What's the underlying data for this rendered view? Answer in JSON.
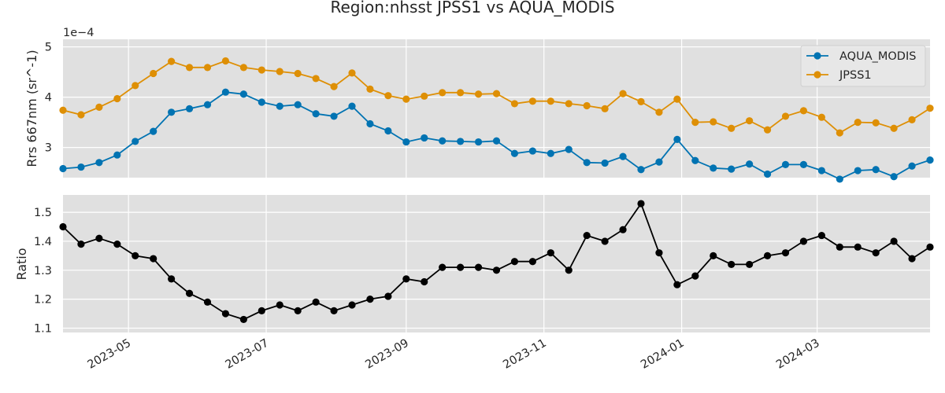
{
  "chart_data": {
    "type": "line",
    "title": "Region:nhsst JPSS1 vs AQUA_MODIS",
    "x": [
      "2023-04-02",
      "2023-04-10",
      "2023-04-18",
      "2023-04-26",
      "2023-05-04",
      "2023-05-12",
      "2023-05-20",
      "2023-05-28",
      "2023-06-05",
      "2023-06-13",
      "2023-06-21",
      "2023-06-29",
      "2023-07-07",
      "2023-07-15",
      "2023-07-23",
      "2023-07-31",
      "2023-08-08",
      "2023-08-16",
      "2023-08-24",
      "2023-09-01",
      "2023-09-09",
      "2023-09-17",
      "2023-09-25",
      "2023-10-03",
      "2023-10-11",
      "2023-10-19",
      "2023-10-27",
      "2023-11-04",
      "2023-11-12",
      "2023-11-20",
      "2023-11-28",
      "2023-12-06",
      "2023-12-14",
      "2023-12-22",
      "2023-12-30",
      "2024-01-07",
      "2024-01-15",
      "2024-01-23",
      "2024-01-31",
      "2024-02-08",
      "2024-02-16",
      "2024-02-24",
      "2024-03-03",
      "2024-03-11",
      "2024-03-19",
      "2024-03-27",
      "2024-04-04",
      "2024-04-12",
      "2024-04-20"
    ],
    "panels": [
      {
        "ylabel": "Rrs 667nm (sr^-1)",
        "offset_text": "1e−4",
        "ylim": [
          2.4,
          5.15
        ],
        "yticks": [
          3,
          4,
          5
        ],
        "legend": "top-right",
        "series": [
          {
            "name": "AQUA_MODIS",
            "color": "#0173b2",
            "values": [
              2.58,
              2.61,
              2.7,
              2.85,
              3.12,
              3.32,
              3.7,
              3.77,
              3.85,
              4.1,
              4.06,
              3.9,
              3.82,
              3.85,
              3.67,
              3.62,
              3.82,
              3.47,
              3.33,
              3.11,
              3.19,
              3.13,
              3.12,
              3.11,
              3.13,
              2.88,
              2.93,
              2.88,
              2.96,
              2.7,
              2.69,
              2.82,
              2.56,
              2.71,
              3.16,
              2.74,
              2.59,
              2.57,
              2.67,
              2.47,
              2.66,
              2.66,
              2.54,
              2.37,
              2.54,
              2.56,
              2.42,
              2.63,
              2.75
            ]
          },
          {
            "name": "JPSS1",
            "color": "#de8f05",
            "values": [
              3.74,
              3.65,
              3.8,
              3.97,
              4.23,
              4.47,
              4.71,
              4.59,
              4.59,
              4.72,
              4.59,
              4.54,
              4.51,
              4.47,
              4.37,
              4.21,
              4.48,
              4.16,
              4.03,
              3.96,
              4.02,
              4.09,
              4.09,
              4.06,
              4.07,
              3.87,
              3.92,
              3.92,
              3.87,
              3.83,
              3.77,
              4.07,
              3.91,
              3.7,
              3.96,
              3.5,
              3.51,
              3.38,
              3.53,
              3.35,
              3.62,
              3.73,
              3.6,
              3.29,
              3.5,
              3.49,
              3.38,
              3.55,
              3.78
            ]
          }
        ]
      },
      {
        "ylabel": "Ratio",
        "ylim": [
          1.085,
          1.56
        ],
        "yticks": [
          1.1,
          1.2,
          1.3,
          1.4,
          1.5
        ],
        "series": [
          {
            "color": "#000000",
            "values": [
              1.45,
              1.39,
              1.41,
              1.39,
              1.35,
              1.34,
              1.27,
              1.22,
              1.19,
              1.15,
              1.13,
              1.16,
              1.18,
              1.16,
              1.19,
              1.16,
              1.18,
              1.2,
              1.21,
              1.27,
              1.26,
              1.31,
              1.31,
              1.31,
              1.3,
              1.33,
              1.33,
              1.36,
              1.3,
              1.42,
              1.4,
              1.44,
              1.53,
              1.36,
              1.25,
              1.28,
              1.35,
              1.32,
              1.32,
              1.35,
              1.36,
              1.4,
              1.42,
              1.38,
              1.38,
              1.36,
              1.4,
              1.34,
              1.38
            ]
          }
        ]
      }
    ],
    "xlim": [
      "2023-04-02",
      "2024-04-20"
    ],
    "xticks": [
      "2023-05-01",
      "2023-07-01",
      "2023-09-01",
      "2023-11-01",
      "2024-01-01",
      "2024-03-01"
    ],
    "xtick_labels": [
      "2023-05",
      "2023-07",
      "2023-09",
      "2023-11",
      "2024-01",
      "2024-03"
    ],
    "grid": true
  }
}
